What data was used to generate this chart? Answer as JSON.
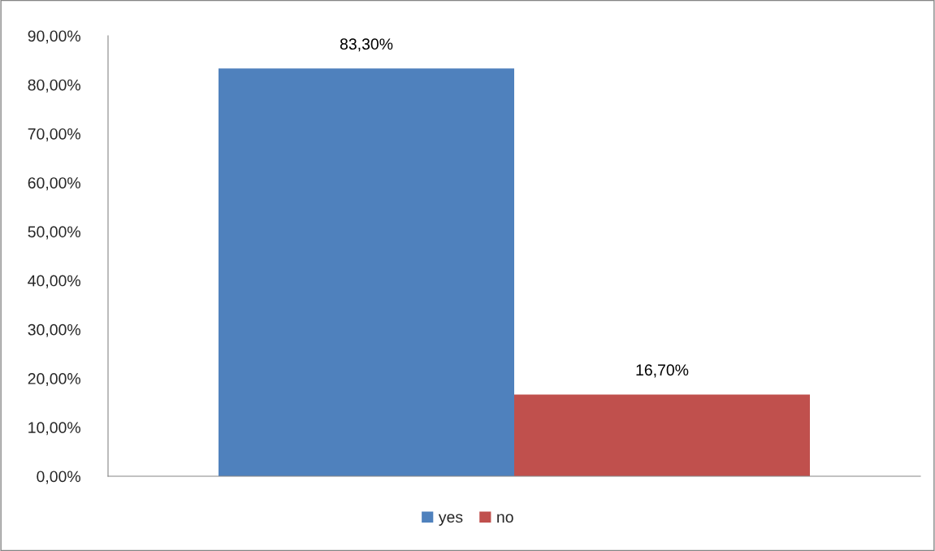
{
  "chart_data": {
    "type": "bar",
    "categories": [
      null
    ],
    "series": [
      {
        "name": "yes",
        "color": "#4f81bd",
        "values": [
          83.3
        ],
        "value_labels": [
          "83,30%"
        ]
      },
      {
        "name": "no",
        "color": "#c0504d",
        "values": [
          16.7
        ],
        "value_labels": [
          "16,70%"
        ]
      }
    ],
    "ylim": [
      0,
      90
    ],
    "yticks": [
      {
        "value": 0,
        "label": "0,00%"
      },
      {
        "value": 10,
        "label": "10,00%"
      },
      {
        "value": 20,
        "label": "20,00%"
      },
      {
        "value": 30,
        "label": "30,00%"
      },
      {
        "value": 40,
        "label": "40,00%"
      },
      {
        "value": 50,
        "label": "50,00%"
      },
      {
        "value": 60,
        "label": "60,00%"
      },
      {
        "value": 70,
        "label": "70,00%"
      },
      {
        "value": 80,
        "label": "80,00%"
      },
      {
        "value": 90,
        "label": "90,00%"
      }
    ],
    "grid": false,
    "legend": "bottom"
  }
}
